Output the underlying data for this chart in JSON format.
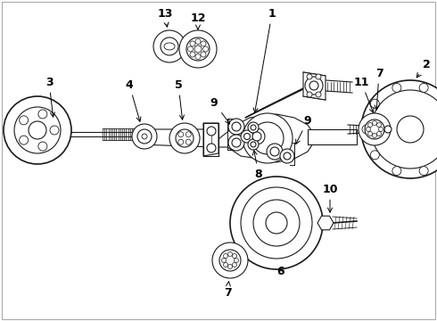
{
  "background_color": "#ffffff",
  "line_color": "#1a1a1a",
  "label_color": "#000000",
  "fig_width": 4.9,
  "fig_height": 3.6,
  "dpi": 100,
  "font_size": 9,
  "font_weight": "bold"
}
